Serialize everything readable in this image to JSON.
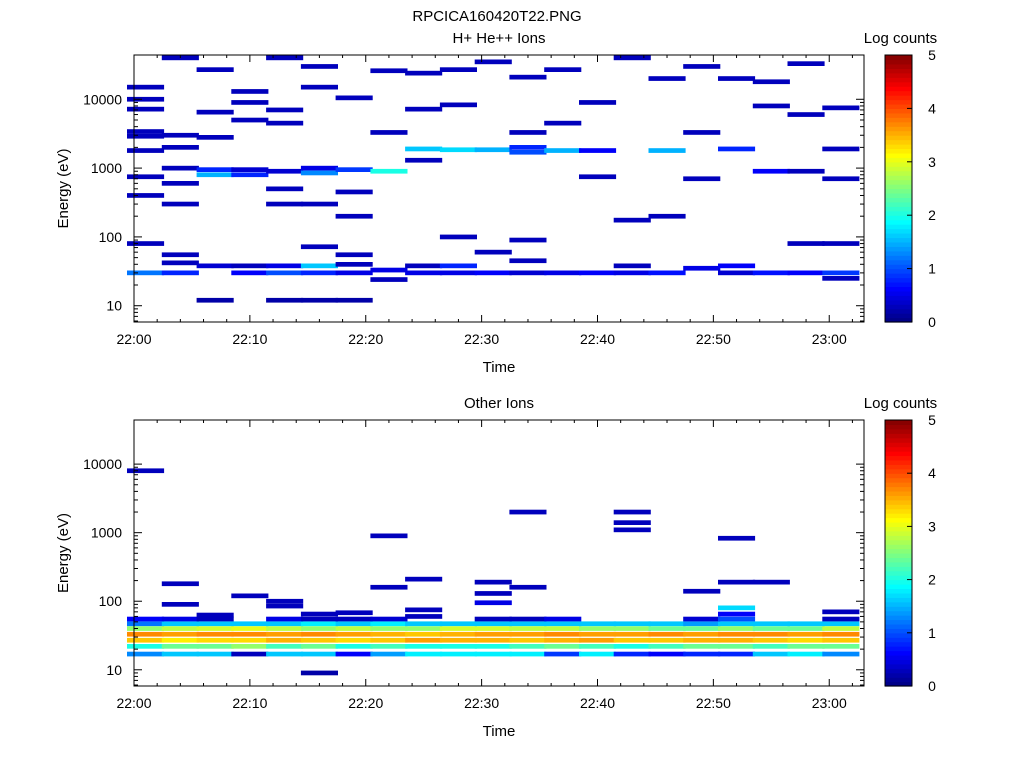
{
  "figure": {
    "title": "RPCICA160420T22.PNG"
  },
  "colorscale": [
    "#00007f",
    "#0000ff",
    "#007fff",
    "#00ffff",
    "#7fff7f",
    "#ffff00",
    "#ff7f00",
    "#ff0000",
    "#7f0000"
  ],
  "chart_data": [
    {
      "type": "heatmap",
      "title": "H+ He++ Ions",
      "xlabel": "Time",
      "ylabel": "Energy (eV)",
      "colorbar_label": "Log counts",
      "colorbar_ticks": [
        "0",
        "1",
        "2",
        "3",
        "4",
        "5"
      ],
      "zlim": [
        0,
        5
      ],
      "x_ticks": [
        "22:00",
        "22:10",
        "22:20",
        "22:30",
        "22:40",
        "22:50",
        "23:00"
      ],
      "xlim": [
        "22:00",
        "23:03"
      ],
      "y_ticks": [
        "10",
        "100",
        "1000",
        "10000"
      ],
      "ylim": [
        5.8,
        44000
      ],
      "y_scale": "log",
      "time_bins": [
        "22:01",
        "22:04",
        "22:07",
        "22:10",
        "22:13",
        "22:16",
        "22:19",
        "22:22",
        "22:25",
        "22:28",
        "22:31",
        "22:34",
        "22:37",
        "22:40",
        "22:43",
        "22:46",
        "22:49",
        "22:52",
        "22:55",
        "22:58",
        "23:01"
      ],
      "cells": [
        {
          "t": 0,
          "e": 30,
          "v": 1.2
        },
        {
          "t": 0,
          "e": 80,
          "v": 0.3
        },
        {
          "t": 0,
          "e": 400,
          "v": 0.3
        },
        {
          "t": 0,
          "e": 750,
          "v": 0.3
        },
        {
          "t": 0,
          "e": 1800,
          "v": 0.3
        },
        {
          "t": 0,
          "e": 2900,
          "v": 0.3
        },
        {
          "t": 0,
          "e": 3400,
          "v": 0.3
        },
        {
          "t": 0,
          "e": 7200,
          "v": 0.3
        },
        {
          "t": 0,
          "e": 10000,
          "v": 0.3
        },
        {
          "t": 0,
          "e": 15000,
          "v": 0.3
        },
        {
          "t": 1,
          "e": 30,
          "v": 0.8
        },
        {
          "t": 1,
          "e": 42,
          "v": 0.3
        },
        {
          "t": 1,
          "e": 55,
          "v": 0.3
        },
        {
          "t": 1,
          "e": 300,
          "v": 0.3
        },
        {
          "t": 1,
          "e": 600,
          "v": 0.3
        },
        {
          "t": 1,
          "e": 1000,
          "v": 0.3
        },
        {
          "t": 1,
          "e": 2000,
          "v": 0.3
        },
        {
          "t": 1,
          "e": 3000,
          "v": 0.3
        },
        {
          "t": 1,
          "e": 40000,
          "v": 0.3
        },
        {
          "t": 2,
          "e": 12,
          "v": 0.2
        },
        {
          "t": 2,
          "e": 38,
          "v": 0.4
        },
        {
          "t": 2,
          "e": 800,
          "v": 1.5
        },
        {
          "t": 2,
          "e": 950,
          "v": 0.8
        },
        {
          "t": 2,
          "e": 2800,
          "v": 0.3
        },
        {
          "t": 2,
          "e": 6500,
          "v": 0.3
        },
        {
          "t": 2,
          "e": 27000,
          "v": 0.3
        },
        {
          "t": 3,
          "e": 30,
          "v": 0.6
        },
        {
          "t": 3,
          "e": 38,
          "v": 0.3
        },
        {
          "t": 3,
          "e": 800,
          "v": 0.8
        },
        {
          "t": 3,
          "e": 950,
          "v": 0.4
        },
        {
          "t": 3,
          "e": 5000,
          "v": 0.3
        },
        {
          "t": 3,
          "e": 9000,
          "v": 0.3
        },
        {
          "t": 3,
          "e": 13000,
          "v": 0.3
        },
        {
          "t": 4,
          "e": 12,
          "v": 0.2
        },
        {
          "t": 4,
          "e": 30,
          "v": 1.0
        },
        {
          "t": 4,
          "e": 38,
          "v": 0.5
        },
        {
          "t": 4,
          "e": 300,
          "v": 0.3
        },
        {
          "t": 4,
          "e": 500,
          "v": 0.3
        },
        {
          "t": 4,
          "e": 900,
          "v": 0.4
        },
        {
          "t": 4,
          "e": 4500,
          "v": 0.3
        },
        {
          "t": 4,
          "e": 7000,
          "v": 0.3
        },
        {
          "t": 4,
          "e": 40000,
          "v": 0.3
        },
        {
          "t": 5,
          "e": 12,
          "v": 0.2
        },
        {
          "t": 5,
          "e": 30,
          "v": 0.8
        },
        {
          "t": 5,
          "e": 38,
          "v": 1.6
        },
        {
          "t": 5,
          "e": 72,
          "v": 0.3
        },
        {
          "t": 5,
          "e": 300,
          "v": 0.3
        },
        {
          "t": 5,
          "e": 850,
          "v": 1.3
        },
        {
          "t": 5,
          "e": 1000,
          "v": 0.5
        },
        {
          "t": 5,
          "e": 15000,
          "v": 0.3
        },
        {
          "t": 5,
          "e": 30000,
          "v": 0.3
        },
        {
          "t": 6,
          "e": 12,
          "v": 0.2
        },
        {
          "t": 6,
          "e": 30,
          "v": 0.5
        },
        {
          "t": 6,
          "e": 40,
          "v": 0.3
        },
        {
          "t": 6,
          "e": 55,
          "v": 0.3
        },
        {
          "t": 6,
          "e": 200,
          "v": 0.3
        },
        {
          "t": 6,
          "e": 450,
          "v": 0.3
        },
        {
          "t": 6,
          "e": 950,
          "v": 0.9
        },
        {
          "t": 6,
          "e": 10500,
          "v": 0.3
        },
        {
          "t": 7,
          "e": 24,
          "v": 0.3
        },
        {
          "t": 7,
          "e": 33,
          "v": 0.5
        },
        {
          "t": 7,
          "e": 900,
          "v": 2.0
        },
        {
          "t": 7,
          "e": 3300,
          "v": 0.3
        },
        {
          "t": 7,
          "e": 26000,
          "v": 0.3
        },
        {
          "t": 8,
          "e": 30,
          "v": 0.5
        },
        {
          "t": 8,
          "e": 38,
          "v": 0.3
        },
        {
          "t": 8,
          "e": 1300,
          "v": 0.3
        },
        {
          "t": 8,
          "e": 1900,
          "v": 1.6
        },
        {
          "t": 8,
          "e": 7200,
          "v": 0.3
        },
        {
          "t": 8,
          "e": 24000,
          "v": 0.3
        },
        {
          "t": 9,
          "e": 30,
          "v": 0.5
        },
        {
          "t": 9,
          "e": 38,
          "v": 0.8
        },
        {
          "t": 9,
          "e": 100,
          "v": 0.3
        },
        {
          "t": 9,
          "e": 1850,
          "v": 1.7
        },
        {
          "t": 9,
          "e": 8300,
          "v": 0.3
        },
        {
          "t": 9,
          "e": 27000,
          "v": 0.3
        },
        {
          "t": 10,
          "e": 30,
          "v": 0.6
        },
        {
          "t": 10,
          "e": 60,
          "v": 0.3
        },
        {
          "t": 10,
          "e": 1850,
          "v": 1.5
        },
        {
          "t": 10,
          "e": 35000,
          "v": 0.3
        },
        {
          "t": 11,
          "e": 30,
          "v": 0.4
        },
        {
          "t": 11,
          "e": 45,
          "v": 0.3
        },
        {
          "t": 11,
          "e": 90,
          "v": 0.3
        },
        {
          "t": 11,
          "e": 1700,
          "v": 1.0
        },
        {
          "t": 11,
          "e": 2000,
          "v": 0.8
        },
        {
          "t": 11,
          "e": 3300,
          "v": 0.3
        },
        {
          "t": 11,
          "e": 21000,
          "v": 0.3
        },
        {
          "t": 12,
          "e": 30,
          "v": 0.5
        },
        {
          "t": 12,
          "e": 1800,
          "v": 1.5
        },
        {
          "t": 12,
          "e": 4500,
          "v": 0.3
        },
        {
          "t": 12,
          "e": 27000,
          "v": 0.3
        },
        {
          "t": 13,
          "e": 30,
          "v": 0.6
        },
        {
          "t": 13,
          "e": 750,
          "v": 0.3
        },
        {
          "t": 13,
          "e": 1800,
          "v": 0.6
        },
        {
          "t": 13,
          "e": 9000,
          "v": 0.3
        },
        {
          "t": 14,
          "e": 30,
          "v": 0.5
        },
        {
          "t": 14,
          "e": 38,
          "v": 0.3
        },
        {
          "t": 14,
          "e": 175,
          "v": 0.3
        },
        {
          "t": 14,
          "e": 40000,
          "v": 0.3
        },
        {
          "t": 15,
          "e": 30,
          "v": 0.7
        },
        {
          "t": 15,
          "e": 200,
          "v": 0.3
        },
        {
          "t": 15,
          "e": 1800,
          "v": 1.5
        },
        {
          "t": 15,
          "e": 20000,
          "v": 0.3
        },
        {
          "t": 16,
          "e": 35,
          "v": 0.5
        },
        {
          "t": 16,
          "e": 700,
          "v": 0.3
        },
        {
          "t": 16,
          "e": 3300,
          "v": 0.3
        },
        {
          "t": 16,
          "e": 30000,
          "v": 0.3
        },
        {
          "t": 17,
          "e": 30,
          "v": 0.4
        },
        {
          "t": 17,
          "e": 38,
          "v": 0.6
        },
        {
          "t": 17,
          "e": 1900,
          "v": 0.8
        },
        {
          "t": 17,
          "e": 20000,
          "v": 0.3
        },
        {
          "t": 18,
          "e": 30,
          "v": 0.7
        },
        {
          "t": 18,
          "e": 900,
          "v": 0.6
        },
        {
          "t": 18,
          "e": 8000,
          "v": 0.3
        },
        {
          "t": 18,
          "e": 18000,
          "v": 0.3
        },
        {
          "t": 19,
          "e": 30,
          "v": 0.6
        },
        {
          "t": 19,
          "e": 80,
          "v": 0.3
        },
        {
          "t": 19,
          "e": 900,
          "v": 0.3
        },
        {
          "t": 19,
          "e": 6000,
          "v": 0.3
        },
        {
          "t": 19,
          "e": 33000,
          "v": 0.3
        },
        {
          "t": 20,
          "e": 25,
          "v": 0.3
        },
        {
          "t": 20,
          "e": 30,
          "v": 0.9
        },
        {
          "t": 20,
          "e": 80,
          "v": 0.3
        },
        {
          "t": 20,
          "e": 700,
          "v": 0.3
        },
        {
          "t": 20,
          "e": 1900,
          "v": 0.3
        },
        {
          "t": 20,
          "e": 7500,
          "v": 0.3
        }
      ]
    },
    {
      "type": "heatmap",
      "title": "Other Ions",
      "xlabel": "Time",
      "ylabel": "Energy (eV)",
      "colorbar_label": "Log counts",
      "colorbar_ticks": [
        "0",
        "1",
        "2",
        "3",
        "4",
        "5"
      ],
      "zlim": [
        0,
        5
      ],
      "x_ticks": [
        "22:00",
        "22:10",
        "22:20",
        "22:30",
        "22:40",
        "22:50",
        "23:00"
      ],
      "xlim": [
        "22:00",
        "23:03"
      ],
      "y_ticks": [
        "10",
        "100",
        "1000",
        "10000"
      ],
      "ylim": [
        5.8,
        44000
      ],
      "y_scale": "log",
      "time_bins": [
        "22:01",
        "22:04",
        "22:07",
        "22:10",
        "22:13",
        "22:16",
        "22:19",
        "22:22",
        "22:25",
        "22:28",
        "22:31",
        "22:34",
        "22:37",
        "22:40",
        "22:43",
        "22:46",
        "22:49",
        "22:52",
        "22:55",
        "22:58",
        "23:01"
      ],
      "bands": [
        {
          "e": 17,
          "v": [
            1.3,
            1.6,
            1.6,
            0.3,
            1.6,
            1.6,
            0.6,
            1.4,
            1.8,
            1.8,
            1.8,
            1.8,
            0.9,
            1.8,
            0.8,
            0.6,
            0.8,
            0.8,
            1.6,
            1.8,
            1.3
          ]
        },
        {
          "e": 22,
          "v": [
            2.0,
            2.4,
            2.4,
            2.6,
            2.2,
            2.4,
            2.0,
            2.2,
            2.0,
            2.0,
            2.0,
            2.2,
            2.4,
            2.2,
            2.0,
            2.2,
            2.4,
            2.4,
            2.2,
            2.4,
            2.4
          ]
        },
        {
          "e": 27,
          "v": [
            3.4,
            3.2,
            3.3,
            3.3,
            3.5,
            3.4,
            3.3,
            3.4,
            3.6,
            3.5,
            3.5,
            3.4,
            3.5,
            3.6,
            3.4,
            3.4,
            3.5,
            3.5,
            3.4,
            3.3,
            3.4
          ]
        },
        {
          "e": 33,
          "v": [
            3.7,
            3.6,
            3.7,
            3.7,
            3.6,
            3.7,
            3.6,
            3.5,
            3.4,
            3.5,
            3.6,
            3.6,
            3.7,
            3.6,
            3.6,
            3.7,
            3.6,
            3.7,
            3.7,
            3.6,
            3.7
          ]
        },
        {
          "e": 40,
          "v": [
            2.6,
            2.8,
            2.9,
            3.0,
            2.8,
            2.6,
            2.8,
            2.6,
            2.6,
            2.9,
            2.9,
            2.8,
            2.8,
            2.6,
            2.6,
            2.4,
            2.4,
            2.6,
            2.4,
            2.4,
            2.8
          ]
        },
        {
          "e": 47,
          "v": [
            1.2,
            1.6,
            1.6,
            1.6,
            1.6,
            1.8,
            1.6,
            1.8,
            1.6,
            1.6,
            1.6,
            1.6,
            1.6,
            1.6,
            1.6,
            1.6,
            1.4,
            1.6,
            1.6,
            1.6,
            1.6
          ]
        }
      ],
      "cells": [
        {
          "t": 0,
          "e": 55,
          "v": 0.6
        },
        {
          "t": 0,
          "e": 8000,
          "v": 0.3
        },
        {
          "t": 1,
          "e": 55,
          "v": 0.5
        },
        {
          "t": 1,
          "e": 90,
          "v": 0.3
        },
        {
          "t": 1,
          "e": 180,
          "v": 0.3
        },
        {
          "t": 2,
          "e": 55,
          "v": 0.3
        },
        {
          "t": 2,
          "e": 63,
          "v": 0.3
        },
        {
          "t": 3,
          "e": 120,
          "v": 0.3
        },
        {
          "t": 4,
          "e": 55,
          "v": 0.5
        },
        {
          "t": 4,
          "e": 85,
          "v": 0.3
        },
        {
          "t": 4,
          "e": 100,
          "v": 0.3
        },
        {
          "t": 5,
          "e": 9,
          "v": 0.2
        },
        {
          "t": 5,
          "e": 55,
          "v": 0.3
        },
        {
          "t": 5,
          "e": 65,
          "v": 0.3
        },
        {
          "t": 6,
          "e": 55,
          "v": 0.3
        },
        {
          "t": 6,
          "e": 68,
          "v": 0.3
        },
        {
          "t": 7,
          "e": 55,
          "v": 0.4
        },
        {
          "t": 7,
          "e": 900,
          "v": 0.3
        },
        {
          "t": 7,
          "e": 160,
          "v": 0.3
        },
        {
          "t": 8,
          "e": 60,
          "v": 0.3
        },
        {
          "t": 8,
          "e": 75,
          "v": 0.3
        },
        {
          "t": 8,
          "e": 210,
          "v": 0.3
        },
        {
          "t": 10,
          "e": 55,
          "v": 0.3
        },
        {
          "t": 10,
          "e": 95,
          "v": 0.5
        },
        {
          "t": 10,
          "e": 130,
          "v": 0.3
        },
        {
          "t": 10,
          "e": 190,
          "v": 0.3
        },
        {
          "t": 11,
          "e": 55,
          "v": 0.3
        },
        {
          "t": 11,
          "e": 160,
          "v": 0.3
        },
        {
          "t": 11,
          "e": 2000,
          "v": 0.3
        },
        {
          "t": 12,
          "e": 55,
          "v": 0.5
        },
        {
          "t": 14,
          "e": 1100,
          "v": 0.3
        },
        {
          "t": 14,
          "e": 1400,
          "v": 0.3
        },
        {
          "t": 14,
          "e": 2000,
          "v": 0.3
        },
        {
          "t": 16,
          "e": 55,
          "v": 0.4
        },
        {
          "t": 16,
          "e": 140,
          "v": 0.3
        },
        {
          "t": 17,
          "e": 55,
          "v": 1.0
        },
        {
          "t": 17,
          "e": 65,
          "v": 0.6
        },
        {
          "t": 17,
          "e": 80,
          "v": 1.7
        },
        {
          "t": 17,
          "e": 190,
          "v": 0.3
        },
        {
          "t": 17,
          "e": 830,
          "v": 0.3
        },
        {
          "t": 18,
          "e": 190,
          "v": 0.3
        },
        {
          "t": 20,
          "e": 55,
          "v": 0.3
        },
        {
          "t": 20,
          "e": 70,
          "v": 0.3
        }
      ]
    }
  ]
}
